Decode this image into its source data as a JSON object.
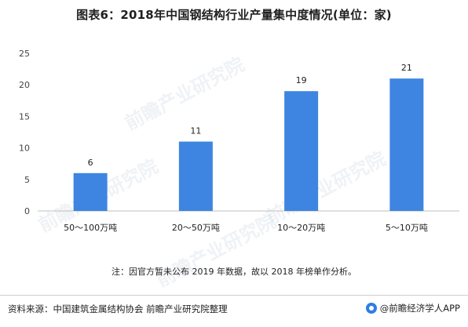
{
  "title": "图表6：2018年中国钢结构行业产量集中度情况(单位：家)",
  "note": "注：因官方暂未公布 2019 年数据，故以 2018 年榜单作分析。",
  "source": "资料来源：中国建筑金属结构协会 前瞻产业研究院整理",
  "brand": "@前瞻经济学人APP",
  "watermark": "前瞻产业研究院",
  "colors": {
    "bar": "#3d85e0",
    "axis": "#bfbfbf"
  },
  "chart_data": {
    "type": "bar",
    "categories": [
      "50～100万吨",
      "20～50万吨",
      "10～20万吨",
      "5～10万吨"
    ],
    "values": [
      6,
      11,
      19,
      21
    ],
    "title": "图表6：2018年中国钢结构行业产量集中度情况(单位：家)",
    "xlabel": "",
    "ylabel": "",
    "ylim": [
      0,
      25
    ],
    "yticks": [
      0,
      5,
      10,
      15,
      20,
      25
    ],
    "grid": false,
    "data_labels": true
  }
}
